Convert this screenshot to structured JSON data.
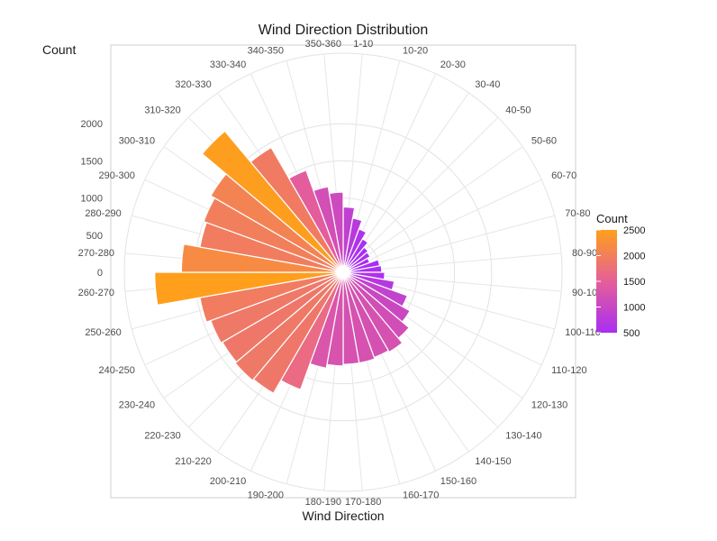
{
  "chart_data": {
    "type": "bar",
    "subtype": "polar-rose",
    "title": "Wind Direction Distribution",
    "xlabel": "Wind Direction",
    "ylabel": "Count",
    "categories": [
      "1-10",
      "10-20",
      "20-30",
      "30-40",
      "40-50",
      "50-60",
      "60-70",
      "70-80",
      "80-90",
      "90-100",
      "100-110",
      "110-120",
      "120-130",
      "130-140",
      "140-150",
      "150-160",
      "160-170",
      "170-180",
      "180-190",
      "190-200",
      "200-210",
      "210-220",
      "220-230",
      "230-240",
      "240-250",
      "250-260",
      "260-270",
      "270-280",
      "280-290",
      "290-300",
      "300-310",
      "310-320",
      "320-330",
      "330-340",
      "340-350",
      "350-360"
    ],
    "values": [
      880,
      740,
      620,
      520,
      440,
      420,
      380,
      500,
      520,
      560,
      700,
      920,
      1040,
      1160,
      1240,
      1220,
      1240,
      1240,
      1260,
      1310,
      1680,
      1880,
      1900,
      1880,
      1900,
      1960,
      2540,
      2180,
      1960,
      2000,
      2060,
      2480,
      1940,
      1460,
      1170,
      1080
    ],
    "ylim": [
      0,
      2500
    ],
    "yticks": [
      0,
      500,
      1000,
      1500,
      2000
    ],
    "grid": true,
    "legend": {
      "title": "Count",
      "position": "right",
      "ticks": [
        500,
        1000,
        1500,
        2000,
        2500
      ],
      "colors": {
        "low": "#a92ef2",
        "mid": "#e55f99",
        "high": "#ff9f1c"
      }
    }
  }
}
